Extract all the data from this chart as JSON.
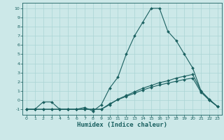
{
  "xlabel": "Humidex (Indice chaleur)",
  "bg_color": "#cce8e8",
  "line_color": "#1a6060",
  "grid_color": "#aad4d4",
  "xlim": [
    -0.5,
    23.5
  ],
  "ylim": [
    -1.6,
    10.6
  ],
  "xticks": [
    0,
    1,
    2,
    3,
    4,
    5,
    6,
    7,
    8,
    9,
    10,
    11,
    12,
    13,
    14,
    15,
    16,
    17,
    18,
    19,
    20,
    21,
    22,
    23
  ],
  "yticks": [
    -1,
    0,
    1,
    2,
    3,
    4,
    5,
    6,
    7,
    8,
    9,
    10
  ],
  "line1_x": [
    0,
    1,
    2,
    3,
    4,
    5,
    6,
    7,
    8,
    9,
    10,
    11,
    12,
    13,
    14,
    15,
    16,
    17,
    18,
    19,
    20,
    21,
    22,
    23
  ],
  "line1_y": [
    -1,
    -1,
    -0.2,
    -0.2,
    -1,
    -1,
    -1,
    -0.8,
    -1.2,
    -0.5,
    1.3,
    2.5,
    5.0,
    7.0,
    8.5,
    10,
    10,
    7.5,
    6.5,
    5.0,
    3.5,
    1.0,
    0.0,
    -0.7
  ],
  "line2_x": [
    0,
    1,
    2,
    3,
    4,
    5,
    6,
    7,
    8,
    9,
    10,
    11,
    12,
    13,
    14,
    15,
    16,
    17,
    18,
    19,
    20,
    21,
    22,
    23
  ],
  "line2_y": [
    -1,
    -1,
    -1,
    -1,
    -1,
    -1,
    -1,
    -1,
    -1,
    -1,
    -0.5,
    0.1,
    0.5,
    0.9,
    1.3,
    1.6,
    1.9,
    2.1,
    2.4,
    2.6,
    2.8,
    1.0,
    0.1,
    -0.7
  ],
  "line3_x": [
    0,
    1,
    2,
    3,
    4,
    5,
    6,
    7,
    8,
    9,
    10,
    11,
    12,
    13,
    14,
    15,
    16,
    17,
    18,
    19,
    20,
    21,
    22,
    23
  ],
  "line3_y": [
    -1,
    -1,
    -1,
    -1,
    -1,
    -1,
    -1,
    -1,
    -1,
    -1,
    -0.4,
    0.05,
    0.4,
    0.75,
    1.1,
    1.4,
    1.65,
    1.85,
    2.05,
    2.25,
    2.4,
    0.85,
    0.0,
    -0.7
  ]
}
